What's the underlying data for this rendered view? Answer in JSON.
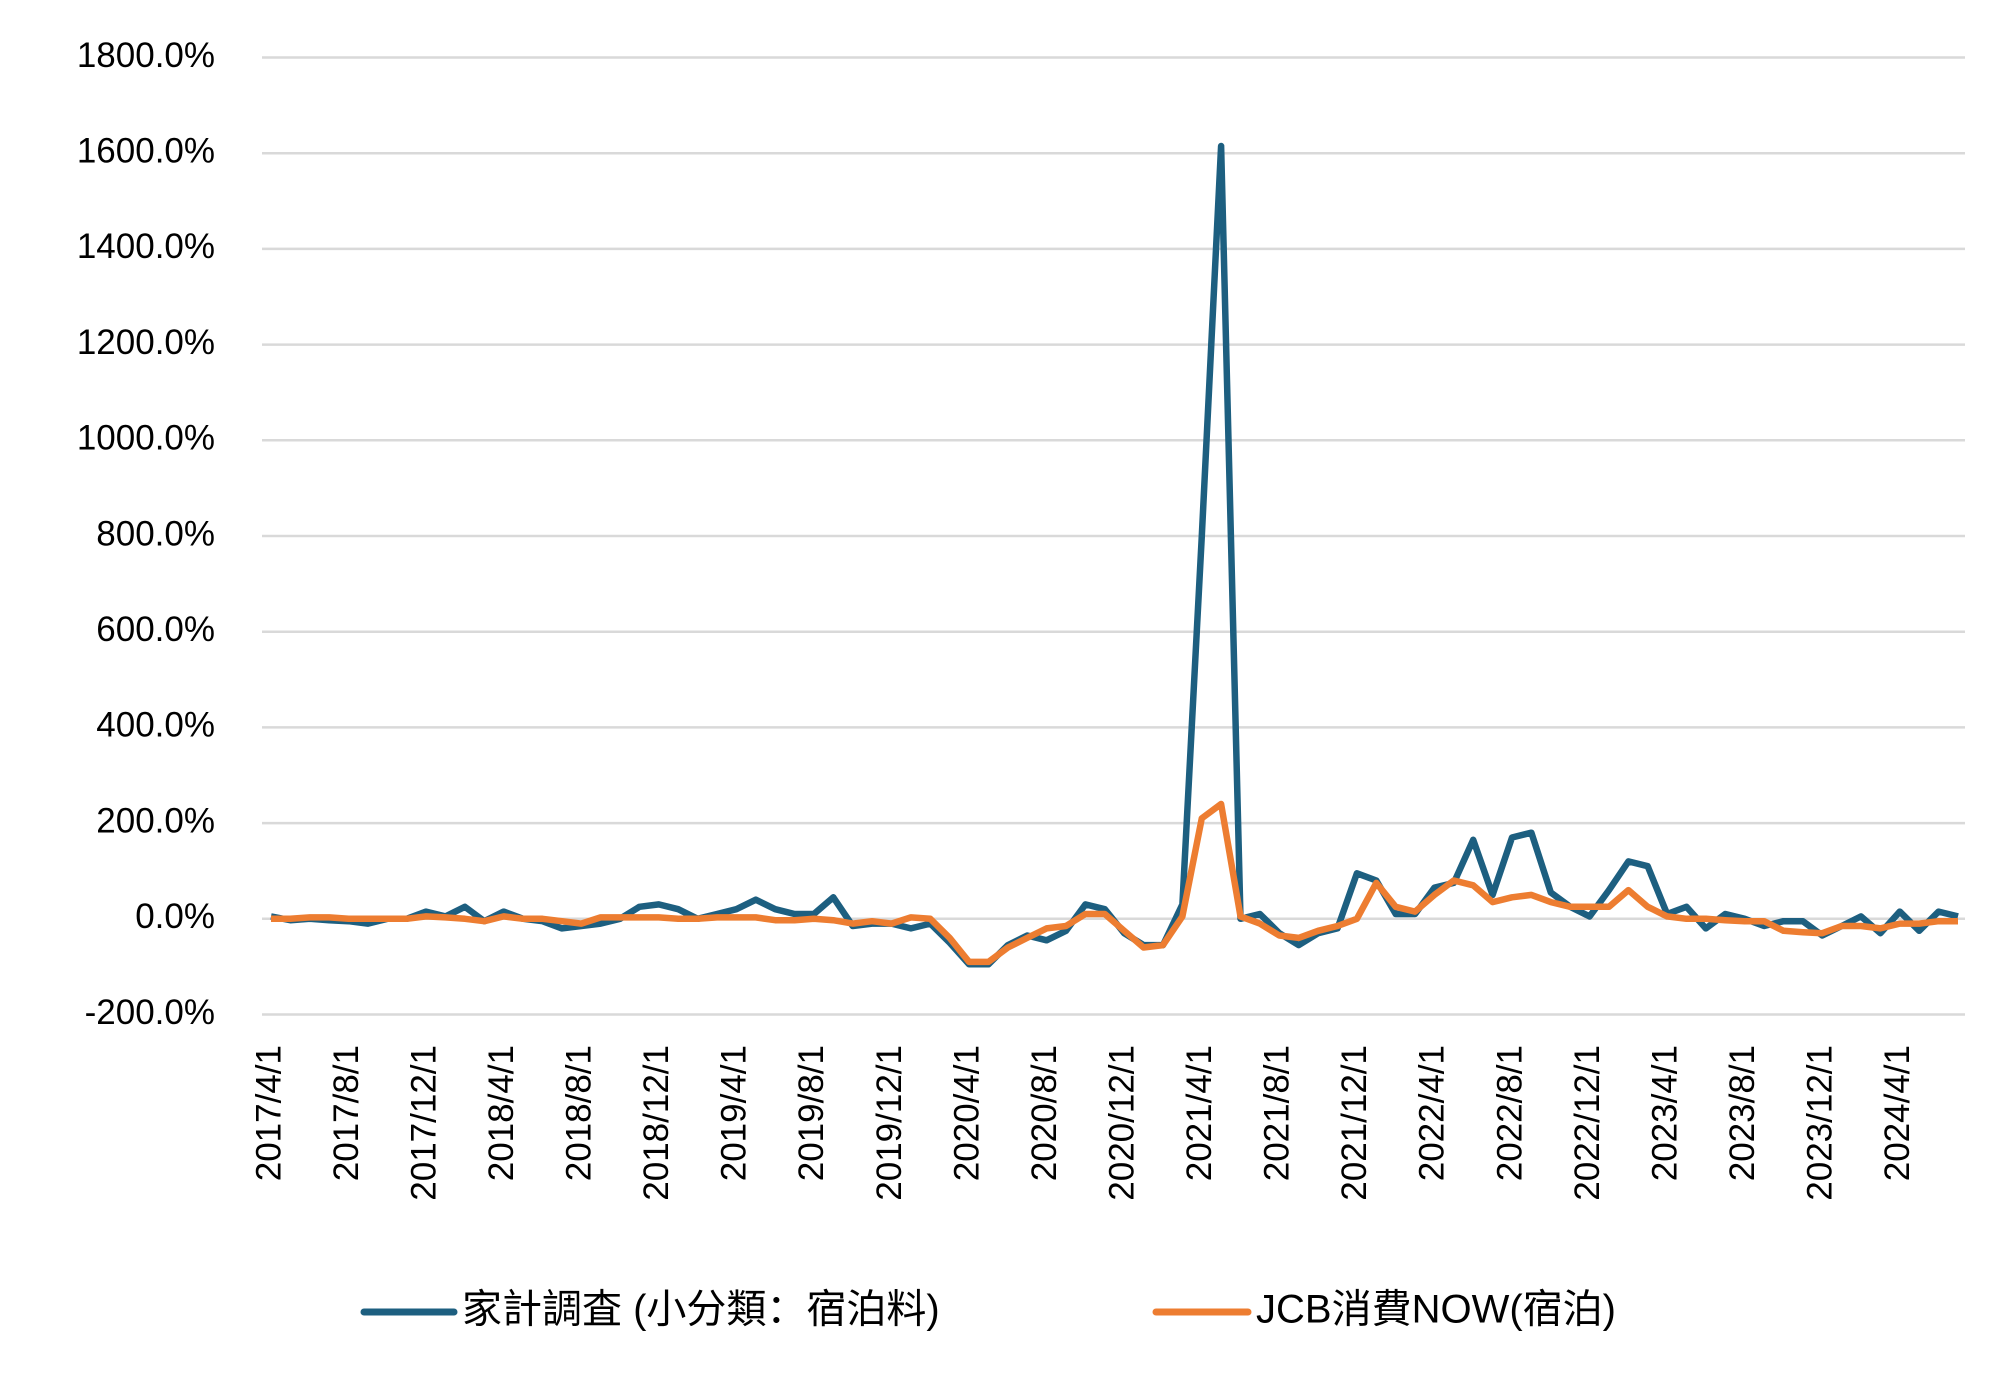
{
  "chart_data": {
    "type": "line",
    "categories": [
      "2017/4/1",
      null,
      null,
      null,
      "2017/8/1",
      null,
      null,
      null,
      "2017/12/1",
      null,
      null,
      null,
      "2018/4/1",
      null,
      null,
      null,
      "2018/8/1",
      null,
      null,
      null,
      "2018/12/1",
      null,
      null,
      null,
      "2019/4/1",
      null,
      null,
      null,
      "2019/8/1",
      null,
      null,
      null,
      "2019/12/1",
      null,
      null,
      null,
      "2020/4/1",
      null,
      null,
      null,
      "2020/8/1",
      null,
      null,
      null,
      "2020/12/1",
      null,
      null,
      null,
      "2021/4/1",
      null,
      null,
      null,
      "2021/8/1",
      null,
      null,
      null,
      "2021/12/1",
      null,
      null,
      null,
      "2022/4/1",
      null,
      null,
      null,
      "2022/8/1",
      null,
      null,
      null,
      "2022/12/1",
      null,
      null,
      null,
      "2023/4/1",
      null,
      null,
      null,
      "2023/8/1",
      null,
      null,
      null,
      "2023/12/1",
      null,
      null,
      null,
      "2024/4/1",
      null,
      null,
      null
    ],
    "series": [
      {
        "name": "家計調査 (小分類：宿泊料)",
        "color": "#1d5f80",
        "values": [
          5,
          -3,
          0,
          -3,
          -5,
          -10,
          0,
          0,
          15,
          5,
          25,
          -5,
          15,
          0,
          -5,
          -20,
          -15,
          -10,
          0,
          25,
          30,
          20,
          0,
          10,
          20,
          40,
          20,
          10,
          10,
          45,
          -15,
          -10,
          -10,
          -20,
          -10,
          -50,
          -95,
          -95,
          -55,
          -35,
          -45,
          -25,
          30,
          20,
          -30,
          -55,
          -55,
          30,
          800,
          1615,
          0,
          10,
          -30,
          -55,
          -30,
          -20,
          95,
          80,
          10,
          10,
          65,
          75,
          165,
          50,
          170,
          180,
          55,
          25,
          5,
          60,
          120,
          110,
          10,
          25,
          -20,
          10,
          0,
          -15,
          -5,
          -5,
          -35,
          -15,
          5,
          -30,
          15,
          -25,
          15,
          5
        ]
      },
      {
        "name": "JCB消費NOW(宿泊)",
        "color": "#ed7d31",
        "values": [
          0,
          0,
          3,
          3,
          0,
          0,
          0,
          0,
          5,
          3,
          0,
          -5,
          5,
          0,
          0,
          -5,
          -10,
          3,
          3,
          3,
          3,
          0,
          0,
          3,
          3,
          3,
          -3,
          -3,
          0,
          -3,
          -10,
          -5,
          -10,
          3,
          0,
          -40,
          -90,
          -90,
          -60,
          -40,
          -20,
          -15,
          10,
          10,
          -25,
          -60,
          -55,
          5,
          210,
          240,
          5,
          -10,
          -35,
          -40,
          -25,
          -15,
          0,
          75,
          25,
          15,
          50,
          80,
          70,
          35,
          45,
          50,
          35,
          25,
          25,
          25,
          60,
          25,
          5,
          0,
          0,
          -3,
          -5,
          -5,
          -25,
          -28,
          -30,
          -15,
          -15,
          -20,
          -10,
          -10,
          -5,
          -5
        ]
      }
    ],
    "ylim": [
      -200,
      1800
    ],
    "yticks": [
      {
        "value": -200,
        "label": "-200.0%"
      },
      {
        "value": 0,
        "label": "0.0%"
      },
      {
        "value": 200,
        "label": "200.0%"
      },
      {
        "value": 400,
        "label": "400.0%"
      },
      {
        "value": 600,
        "label": "600.0%"
      },
      {
        "value": 800,
        "label": "800.0%"
      },
      {
        "value": 1000,
        "label": "1000.0%"
      },
      {
        "value": 1200,
        "label": "1200.0%"
      },
      {
        "value": 1400,
        "label": "1400.0%"
      },
      {
        "value": 1600,
        "label": "1600.0%"
      },
      {
        "value": 1800,
        "label": "1800.0%"
      }
    ],
    "grid": true,
    "legend": "bottom"
  }
}
